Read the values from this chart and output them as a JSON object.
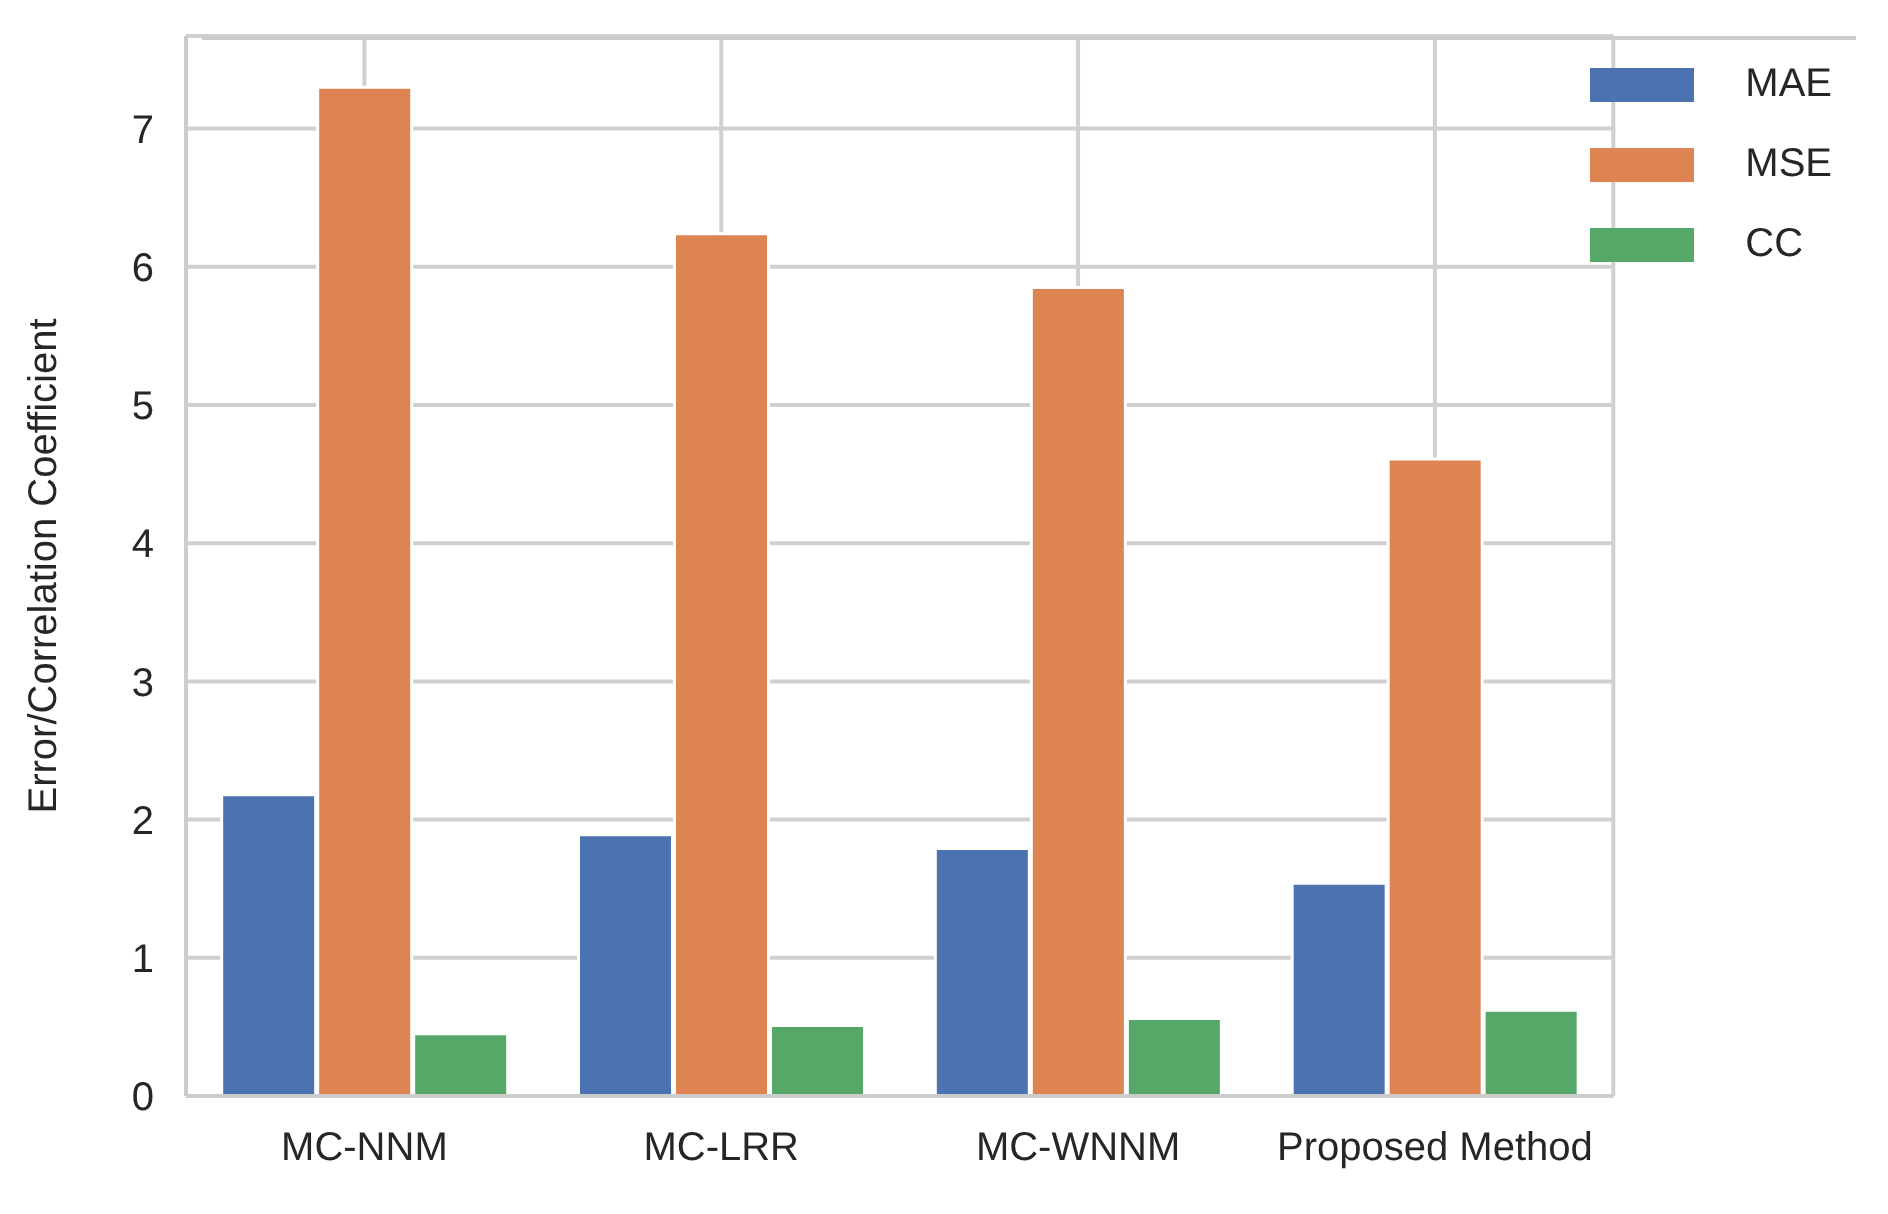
{
  "chart_data": {
    "type": "bar",
    "ylabel": "Error/Correlation Coefficient",
    "categories": [
      "MC-NNM",
      "MC-LRR",
      "MC-WNNM",
      "Proposed Method"
    ],
    "series": [
      {
        "name": "MAE",
        "color": "#4c72b0",
        "values": [
          2.18,
          1.89,
          1.79,
          1.54
        ]
      },
      {
        "name": "MSE",
        "color": "#dd8452",
        "values": [
          7.3,
          6.24,
          5.85,
          4.61
        ]
      },
      {
        "name": "CC",
        "color": "#55a868",
        "values": [
          0.45,
          0.51,
          0.56,
          0.62
        ]
      }
    ],
    "ylim": [
      0,
      7.67
    ],
    "yticks": [
      0,
      1,
      2,
      3,
      4,
      5,
      6,
      7
    ],
    "grid": true,
    "legend": "top right"
  }
}
